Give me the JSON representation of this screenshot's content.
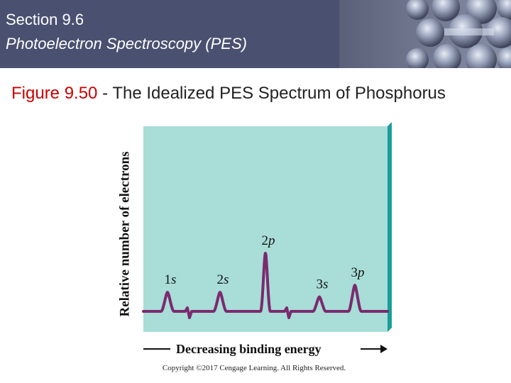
{
  "header": {
    "section": "Section 9.6",
    "subtitle": "Photoelectron Spectroscopy (PES)",
    "colors": {
      "bar": "#4a5170",
      "text": "#ffffff"
    }
  },
  "figure": {
    "number": "Figure 9.50",
    "separator": " - ",
    "title": "The Idealized PES Spectrum of Phosphorus"
  },
  "chart_data": {
    "type": "line",
    "title": "",
    "xlabel": "Decreasing binding energy",
    "ylabel": "Relative number of electrons",
    "grid": false,
    "legend": "none",
    "colors": {
      "panel": "#a8ddd8",
      "panel_edge": "#1a9e96",
      "line": "#7b2a6e",
      "axis": "#111111"
    },
    "peaks": [
      {
        "label": "1s",
        "orbital_letter": "s",
        "shell": "1",
        "relative_height": 0.33
      },
      {
        "label": "2s",
        "orbital_letter": "s",
        "shell": "2",
        "relative_height": 0.33
      },
      {
        "label": "2p",
        "orbital_letter": "p",
        "shell": "2",
        "relative_height": 1.0
      },
      {
        "label": "3s",
        "orbital_letter": "s",
        "shell": "3",
        "relative_height": 0.25
      },
      {
        "label": "3p",
        "orbital_letter": "p",
        "shell": "3",
        "relative_height": 0.45
      }
    ]
  },
  "footer": {
    "copyright": "Copyright ©2017 Cengage Learning. All Rights Reserved."
  }
}
